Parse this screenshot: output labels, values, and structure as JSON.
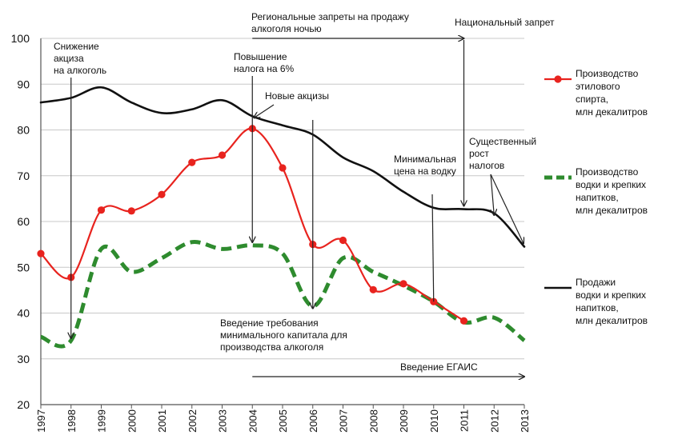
{
  "chart_data": {
    "type": "line",
    "title": "",
    "xlabel": "",
    "ylabel": "",
    "ylim": [
      20,
      100
    ],
    "yticks": [
      20,
      30,
      40,
      50,
      60,
      70,
      80,
      90,
      100
    ],
    "x": [
      1997,
      1998,
      1999,
      2000,
      2001,
      2002,
      2003,
      2004,
      2005,
      2006,
      2007,
      2008,
      2009,
      2010,
      2011,
      2012,
      2013
    ],
    "xtick_labels": [
      "1997",
      "1998",
      "1999",
      "2000",
      "2001",
      "2002",
      "2003",
      "2004",
      "2005",
      "2006",
      "2007",
      "2008",
      "2009",
      "2010",
      "2011",
      "2012",
      "2013"
    ],
    "grid": "horizontal",
    "legend_position": "right",
    "series": [
      {
        "name": "Производство этилового спирта, млн декалитров",
        "legend_lines": [
          "Производство",
          "этилового",
          "спирта,",
          "млн декалитров"
        ],
        "color": "#e8231e",
        "style": "solid-markers",
        "x": [
          1997,
          1998,
          1999,
          2000,
          2001,
          2002,
          2003,
          2004,
          2005,
          2006,
          2007,
          2008,
          2009,
          2010,
          2011
        ],
        "values": [
          53,
          47.8,
          62.5,
          62.3,
          65.9,
          72.9,
          74.5,
          80.3,
          71.7,
          55,
          55.9,
          45.1,
          46.4,
          42.5,
          38.3
        ]
      },
      {
        "name": "Производство водки и крепких напитков, млн декалитров",
        "legend_lines": [
          "Производство",
          "водки и крепких",
          "напитков,",
          "млн декалитров"
        ],
        "color": "#2e8b2e",
        "style": "dashed",
        "x": [
          1997,
          1998,
          1999,
          2000,
          2001,
          2002,
          2003,
          2004,
          2005,
          2006,
          2007,
          2008,
          2009,
          2010,
          2011,
          2012,
          2013
        ],
        "values": [
          34.8,
          34,
          54,
          49,
          52,
          55.5,
          54,
          54.8,
          53,
          41.5,
          52,
          49,
          46,
          42.5,
          38,
          39,
          34
        ]
      },
      {
        "name": "Продажи водки и крепких напитков, млн декалитров",
        "legend_lines": [
          "Продажи",
          "водки и крепких",
          "напитков,",
          "млн декалитров"
        ],
        "color": "#111111",
        "style": "solid",
        "x": [
          1997,
          1998,
          1999,
          2000,
          2001,
          2002,
          2003,
          2004,
          2005,
          2006,
          2007,
          2008,
          2009,
          2010,
          2011,
          2012,
          2013
        ],
        "values": [
          86,
          87,
          89.3,
          86,
          83.7,
          84.5,
          86.5,
          83,
          81,
          79,
          74,
          71,
          66.5,
          63,
          62.7,
          61.8,
          54.5
        ]
      }
    ],
    "annotations": [
      {
        "id": "excise",
        "lines": [
          "Снижение",
          "акциза",
          "на алкоголь"
        ],
        "year": 1998
      },
      {
        "id": "tax6",
        "lines": [
          "Повышение",
          "налога на 6%"
        ],
        "year": 2004
      },
      {
        "id": "new-excise",
        "lines": [
          "Новые акцизы"
        ],
        "year": 2004
      },
      {
        "id": "regional-ban",
        "lines": [
          "Региональные запреты на продажу",
          "алкоголя ночью"
        ],
        "from_year": 2004,
        "to_year": 2011
      },
      {
        "id": "national-ban",
        "lines": [
          "Национальный запрет"
        ],
        "year": 2011
      },
      {
        "id": "min-price",
        "lines": [
          "Минимальная",
          "цена на водку"
        ],
        "year": 2010
      },
      {
        "id": "tax-growth",
        "lines": [
          "Существенный",
          "рост",
          "налогов"
        ],
        "years": [
          2012,
          2013
        ]
      },
      {
        "id": "min-capital",
        "lines": [
          "Введение требования",
          "минимального капитала для",
          "производства алкоголя"
        ],
        "year": 2006
      },
      {
        "id": "egais",
        "lines": [
          "Введение ЕГАИС"
        ],
        "from_year": 2004,
        "to_year": 2013
      }
    ]
  }
}
